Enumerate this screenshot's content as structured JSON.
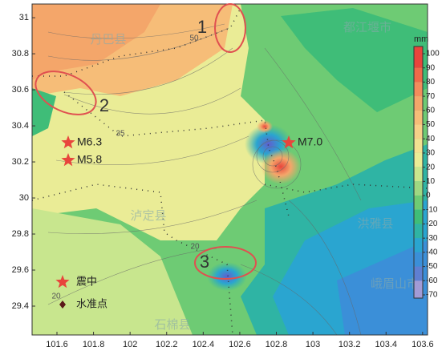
{
  "map": {
    "xlim": [
      101.464,
      103.627
    ],
    "ylim": [
      29.24,
      31.076
    ],
    "xticks": [
      101.6,
      101.8,
      102,
      102.2,
      102.4,
      102.6,
      102.8,
      103,
      103.2,
      103.4,
      103.6
    ],
    "yticks": [
      29.4,
      29.6,
      29.8,
      30,
      30.2,
      30.4,
      30.6,
      30.8,
      31
    ],
    "event_labels": [
      "1",
      "2",
      "3"
    ],
    "epicenters": [
      "M6.3",
      "M5.8",
      "M7.0"
    ],
    "legend": [
      "震中",
      "水准点"
    ],
    "contour_labels": [
      "50",
      "35",
      "20",
      "20"
    ],
    "places": [
      "丹巴县",
      "都江堰市",
      "洪雅县",
      "峨眉山市",
      "石棉县",
      "泸定县"
    ]
  },
  "colorbar": {
    "unit": "mm",
    "ticks": [
      100,
      90,
      80,
      70,
      60,
      50,
      40,
      30,
      20,
      10,
      0,
      -10,
      -20,
      -30,
      -40,
      -50,
      -60,
      -70
    ],
    "colors": [
      "#e8453c",
      "#ee6a4a",
      "#f28c5c",
      "#f4a66a",
      "#f6bd78",
      "#f7d088",
      "#f5e191",
      "#eaec96",
      "#c8e68e",
      "#9fd882",
      "#6ecb74",
      "#3fbd78",
      "#2fb4a4",
      "#2aa5d0",
      "#3b8fd8",
      "#5f7fd2",
      "#a29bd6"
    ]
  }
}
